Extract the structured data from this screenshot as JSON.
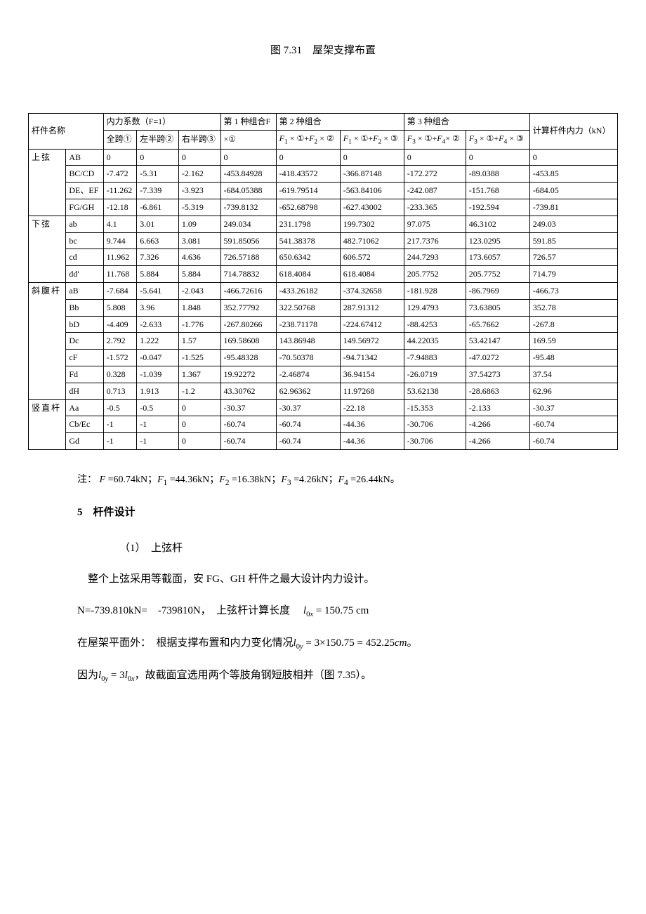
{
  "figCaption": "图 7.31　屋架支撑布置",
  "tableHeaders": {
    "memberName": "杆件名称",
    "coeffGroup": "内力系数（F=1）",
    "coeff1": "全跨①",
    "coeff2": "左半跨②",
    "coeff3": "右半跨③",
    "combination1Group": "第 1 种组合F",
    "combination1": "×①",
    "combination2Group": "第 2 种组合",
    "combination2a": "F₁ × ①+F₂ × ②",
    "combination2b": "F₁ × ①+F₂ × ③",
    "combination3Group": "第 3 种组合",
    "combination3a": "F₃ × ①+F₄× ②",
    "combination3b": "F₃ × ①+F₄ × ③",
    "calcForce": "计算杆件内力（kN）"
  },
  "groups": [
    {
      "name": "上弦",
      "rows": [
        {
          "m": "AB",
          "c1": "0",
          "c2": "0",
          "c3": "0",
          "v1": "0",
          "v2": "0",
          "v3": "0",
          "v4": "0",
          "v5": "0",
          "vf": "0"
        },
        {
          "m": "BC/CD",
          "c1": "-7.472",
          "c2": "-5.31",
          "c3": "-2.162",
          "v1": "-453.84928",
          "v2": "-418.43572",
          "v3": "-366.87148",
          "v4": "-172.272",
          "v5": "-89.0388",
          "vf": "-453.85"
        },
        {
          "m": "DE、EF",
          "c1": "-11.262",
          "c2": "-7.339",
          "c3": "-3.923",
          "v1": "-684.05388",
          "v2": "-619.79514",
          "v3": "-563.84106",
          "v4": "-242.087",
          "v5": "-151.768",
          "vf": "-684.05"
        },
        {
          "m": "FG/GH",
          "c1": "-12.18",
          "c2": "-6.861",
          "c3": "-5.319",
          "v1": "-739.8132",
          "v2": "-652.68798",
          "v3": "-627.43002",
          "v4": "-233.365",
          "v5": "-192.594",
          "vf": "-739.81"
        }
      ]
    },
    {
      "name": "下弦",
      "rows": [
        {
          "m": "ab",
          "c1": "4.1",
          "c2": "3.01",
          "c3": "1.09",
          "v1": "249.034",
          "v2": "231.1798",
          "v3": "199.7302",
          "v4": "97.075",
          "v5": "46.3102",
          "vf": "249.03"
        },
        {
          "m": "bc",
          "c1": "9.744",
          "c2": "6.663",
          "c3": "3.081",
          "v1": "591.85056",
          "v2": "541.38378",
          "v3": "482.71062",
          "v4": "217.7376",
          "v5": "123.0295",
          "vf": "591.85"
        },
        {
          "m": "cd",
          "c1": "11.962",
          "c2": "7.326",
          "c3": "4.636",
          "v1": "726.57188",
          "v2": "650.6342",
          "v3": "606.572",
          "v4": "244.7293",
          "v5": "173.6057",
          "vf": "726.57"
        },
        {
          "m": "dd'",
          "c1": "11.768",
          "c2": "5.884",
          "c3": "5.884",
          "v1": "714.78832",
          "v2": "618.4084",
          "v3": "618.4084",
          "v4": "205.7752",
          "v5": "205.7752",
          "vf": "714.79"
        }
      ]
    },
    {
      "name": "斜腹杆",
      "rows": [
        {
          "m": "aB",
          "c1": "-7.684",
          "c2": "-5.641",
          "c3": "-2.043",
          "v1": "-466.72616",
          "v2": "-433.26182",
          "v3": "-374.32658",
          "v4": "-181.928",
          "v5": "-86.7969",
          "vf": "-466.73"
        },
        {
          "m": "Bb",
          "c1": "5.808",
          "c2": "3.96",
          "c3": "1.848",
          "v1": "352.77792",
          "v2": "322.50768",
          "v3": "287.91312",
          "v4": "129.4793",
          "v5": "73.63805",
          "vf": "352.78"
        },
        {
          "m": "bD",
          "c1": "-4.409",
          "c2": "-2.633",
          "c3": "-1.776",
          "v1": "-267.80266",
          "v2": "-238.71178",
          "v3": "-224.67412",
          "v4": "-88.4253",
          "v5": "-65.7662",
          "vf": "-267.8"
        },
        {
          "m": "Dc",
          "c1": "2.792",
          "c2": "1.222",
          "c3": "1.57",
          "v1": "169.58608",
          "v2": "143.86948",
          "v3": "149.56972",
          "v4": "44.22035",
          "v5": "53.42147",
          "vf": "169.59"
        },
        {
          "m": "cF",
          "c1": "-1.572",
          "c2": "-0.047",
          "c3": "-1.525",
          "v1": "-95.48328",
          "v2": "-70.50378",
          "v3": "-94.71342",
          "v4": "-7.94883",
          "v5": "-47.0272",
          "vf": "-95.48"
        },
        {
          "m": "Fd",
          "c1": "0.328",
          "c2": "-1.039",
          "c3": "1.367",
          "v1": "19.92272",
          "v2": "-2.46874",
          "v3": "36.94154",
          "v4": "-26.0719",
          "v5": "37.54273",
          "vf": "37.54"
        },
        {
          "m": "dH",
          "c1": "0.713",
          "c2": "1.913",
          "c3": "-1.2",
          "v1": "43.30762",
          "v2": "62.96362",
          "v3": "11.97268",
          "v4": "53.62138",
          "v5": "-28.6863",
          "vf": "62.96"
        }
      ]
    },
    {
      "name": "竖直杆",
      "rows": [
        {
          "m": "Aa",
          "c1": "-0.5",
          "c2": "-0.5",
          "c3": "0",
          "v1": "-30.37",
          "v2": "-30.37",
          "v3": "-22.18",
          "v4": "-15.353",
          "v5": "-2.133",
          "vf": "-30.37"
        },
        {
          "m": "Cb/Ec",
          "c1": "-1",
          "c2": "-1",
          "c3": "0",
          "v1": "-60.74",
          "v2": "-60.74",
          "v3": "-44.36",
          "v4": "-30.706",
          "v5": "-4.266",
          "vf": "-60.74"
        },
        {
          "m": "Gd",
          "c1": "-1",
          "c2": "-1",
          "c3": "0",
          "v1": "-60.74",
          "v2": "-60.74",
          "v3": "-44.36",
          "v4": "-30.706",
          "v5": "-4.266",
          "vf": "-60.74"
        }
      ]
    }
  ],
  "noteLabel": "注：",
  "noteContent": "F =60.74kN；F₁ =44.36kN；F₂ =16.38kN；F₃ =4.26kN；F₄ =26.44kN。",
  "sectionNum": "5",
  "sectionTitle": "杆件设计",
  "subNum": "（1）",
  "subTitle": "上弦杆",
  "para1": "整个上弦采用等截面，安 FG、GH 杆件之最大设计内力设计。",
  "para2a": "N=-739.810kN=　-739810N，　上弦杆计算长度　",
  "para2b": " cm",
  "para3a": "在屋架平面外：　根据支撑布置和内力变化情况",
  "para3b": "。",
  "para4a": "因为",
  "para4b": "，故截面宜选用两个等肢角钢短肢相并（图 7.35）。",
  "eq1": "l₀ₓ = 150.75",
  "eq2": "l₀ᵧ = 3×150.75 = 452.25cm",
  "eq3": "l₀ᵧ = 3l₀ₓ"
}
